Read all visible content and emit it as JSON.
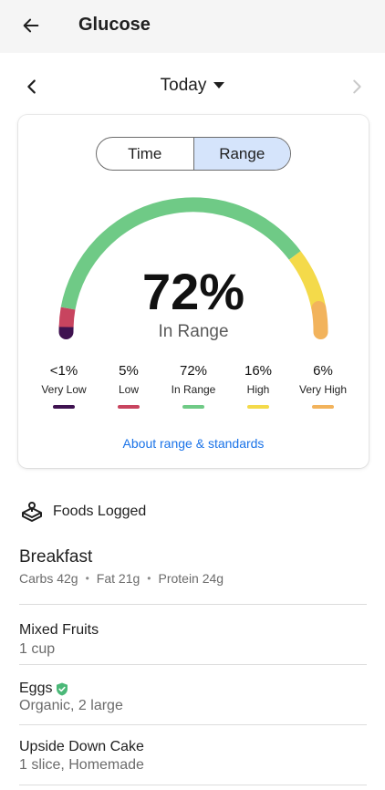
{
  "app_bar": {
    "title": "Glucose"
  },
  "date_nav": {
    "selected": "Today"
  },
  "range_card": {
    "toggle": {
      "options": [
        "Time",
        "Range"
      ],
      "active": "Range"
    },
    "gauge": {
      "value_text": "72%",
      "label": "In Range"
    },
    "categories": [
      {
        "pct": "<1%",
        "name": "Very Low",
        "color": "#3f1250"
      },
      {
        "pct": "5%",
        "name": "Low",
        "color": "#c8445f"
      },
      {
        "pct": "72%",
        "name": "In Range",
        "color": "#6fca86"
      },
      {
        "pct": "16%",
        "name": "High",
        "color": "#f4da4a"
      },
      {
        "pct": "6%",
        "name": "Very High",
        "color": "#f2b35c"
      }
    ],
    "link": "About range & standards"
  },
  "foods": {
    "title": "Foods Logged",
    "meal": {
      "name": "Breakfast",
      "macros": [
        "Carbs 42g",
        "Fat 21g",
        "Protein 24g"
      ]
    },
    "items": [
      {
        "name": "Mixed Fruits",
        "desc": "1 cup",
        "verified": false
      },
      {
        "name": "Eggs",
        "desc": "Organic, 2 large",
        "verified": true
      },
      {
        "name": "Upside Down Cake",
        "desc": "1 slice, Homemade",
        "verified": false
      }
    ]
  },
  "colors": {
    "accent": "#1a73e8",
    "toggle_active": "#d5e4fb",
    "verified": "#4bb878"
  }
}
